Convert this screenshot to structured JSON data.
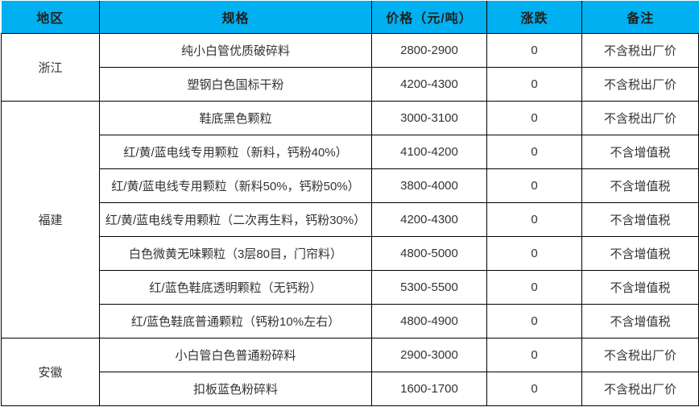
{
  "table": {
    "title": "recycled-plastic-price-table",
    "headers": [
      "地区",
      "规格",
      "价格（元/吨）",
      "涨跌",
      "备注"
    ],
    "colors": {
      "header_bg": "#00b0f0",
      "header_text": "#1f1f1f",
      "border": "#000000",
      "body_text": "#333333"
    },
    "regions": [
      {
        "name": "浙江",
        "rows": [
          {
            "spec": "纯小白管优质破碎料",
            "price": "2800-2900",
            "change": "0",
            "note": "不含税出厂价"
          },
          {
            "spec": "塑钢白色国标干粉",
            "price": "4200-4300",
            "change": "0",
            "note": "不含税出厂价"
          }
        ]
      },
      {
        "name": "福建",
        "rows": [
          {
            "spec": "鞋底黑色颗粒",
            "price": "3000-3100",
            "change": "0",
            "note": "不含税出厂价"
          },
          {
            "spec": "红/黄/蓝电线专用颗粒（新料，钙粉40%）",
            "price": "4100-4200",
            "change": "0",
            "note": "不含增值税"
          },
          {
            "spec": "红/黄/蓝电线专用颗粒（新料50%，钙粉50%）",
            "price": "3800-4000",
            "change": "0",
            "note": "不含增值税"
          },
          {
            "spec": "红/黄/蓝电线专用颗粒（二次再生料，钙粉30%）",
            "price": "4200-4300",
            "change": "0",
            "note": "不含增值税"
          },
          {
            "spec": "白色微黄无味颗粒（3层80目，门帘料）",
            "price": "4800-5000",
            "change": "0",
            "note": "不含增值税"
          },
          {
            "spec": "红/蓝色鞋底透明颗粒（无钙粉）",
            "price": "5300-5500",
            "change": "0",
            "note": "不含增值税"
          },
          {
            "spec": "红/蓝色鞋底普通颗粒（钙粉10%左右）",
            "price": "4800-4900",
            "change": "0",
            "note": "不含增值税"
          }
        ]
      },
      {
        "name": "安徽",
        "rows": [
          {
            "spec": "小白管白色普通粉碎料",
            "price": "2900-3000",
            "change": "0",
            "note": "不含税出厂价"
          },
          {
            "spec": "扣板蓝色粉碎料",
            "price": "1600-1700",
            "change": "0",
            "note": "不含税出厂价"
          }
        ]
      }
    ]
  }
}
